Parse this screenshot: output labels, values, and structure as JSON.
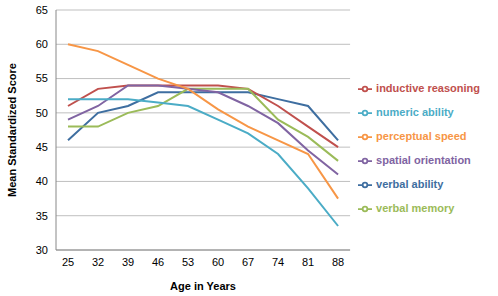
{
  "chart_data": {
    "type": "line",
    "x_label": "Age in Years",
    "y_label": "Mean Standardized Score",
    "categories": [
      "25",
      "32",
      "39",
      "46",
      "53",
      "60",
      "67",
      "74",
      "81",
      "88"
    ],
    "series": [
      {
        "name": "verbal ability",
        "color": "#3E6EA0",
        "values": [
          46,
          50,
          51,
          53,
          53,
          53,
          53,
          52,
          51,
          46
        ]
      },
      {
        "name": "inductive reasoning",
        "color": "#C0504D",
        "values": [
          51,
          53.5,
          54,
          54,
          54,
          54,
          53.5,
          51,
          48,
          45
        ]
      },
      {
        "name": "verbal memory",
        "color": "#9BBB59",
        "values": [
          48,
          48,
          50,
          51,
          53.5,
          53.5,
          53.5,
          49,
          46.5,
          43
        ]
      },
      {
        "name": "spatial orientation",
        "color": "#8064A2",
        "values": [
          49,
          51,
          54,
          54,
          53.5,
          53,
          51,
          48.5,
          44.5,
          41
        ]
      },
      {
        "name": "numeric ability",
        "color": "#4BACC6",
        "values": [
          52,
          52,
          52,
          51.5,
          51,
          49,
          47,
          44,
          39,
          33.5
        ]
      },
      {
        "name": "perceptual speed",
        "color": "#F79646",
        "values": [
          60,
          59,
          57,
          55,
          53.5,
          50.5,
          48,
          46,
          44,
          37.5
        ]
      }
    ],
    "ylim": [
      30,
      65
    ],
    "yticks": [
      30,
      35,
      40,
      45,
      50,
      55,
      60,
      65
    ],
    "grid": true,
    "legend": "right"
  }
}
